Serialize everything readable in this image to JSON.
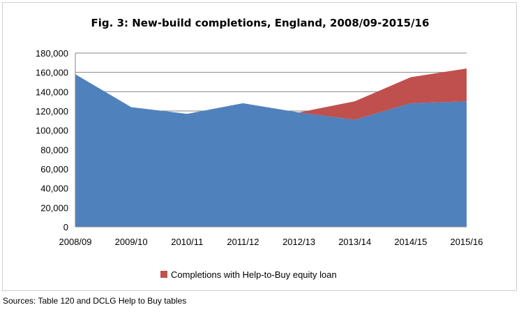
{
  "chart_data": {
    "type": "area",
    "title": "Fig. 3: New-build completions, England, 2008/09-2015/16",
    "xlabel": "",
    "ylabel": "",
    "categories": [
      "2008/09",
      "2009/10",
      "2010/11",
      "2011/12",
      "2012/13",
      "2013/14",
      "2014/15",
      "2015/16"
    ],
    "ylim": [
      0,
      180000
    ],
    "yticks": [
      "0",
      "20,000",
      "40,000",
      "60,000",
      "80,000",
      "100,000",
      "120,000",
      "140,000",
      "160,000",
      "180,000"
    ],
    "ytick_values": [
      0,
      20000,
      40000,
      60000,
      80000,
      100000,
      120000,
      140000,
      160000,
      180000
    ],
    "grid": true,
    "stacked": true,
    "series": [
      {
        "values": [
          158000,
          124000,
          117000,
          128000,
          118500,
          111000,
          128000,
          130000
        ],
        "color": "#4f81bd"
      },
      {
        "name": "Completions with Help-to-Buy equity loan",
        "values": [
          0,
          0,
          0,
          0,
          0,
          19000,
          27000,
          34000
        ],
        "color": "#c0504d"
      }
    ],
    "legend_position": "bottom"
  },
  "source": "Sources: Table 120 and DCLG Help to Buy tables"
}
